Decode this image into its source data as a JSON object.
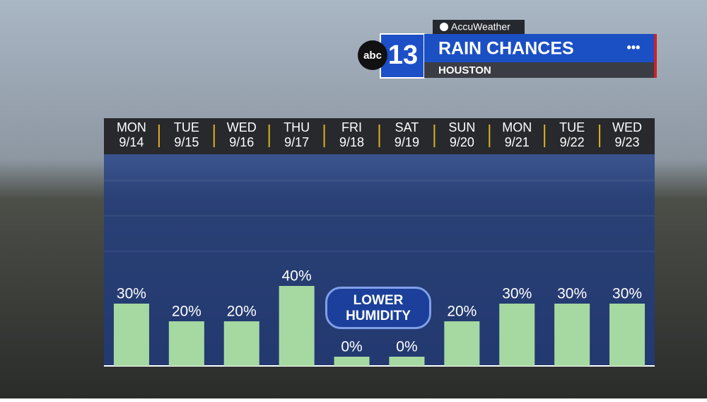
{
  "header": {
    "provider": "AccuWeather",
    "network": "abc",
    "channel": "13",
    "title": "RAIN CHANCES",
    "location": "HOUSTON"
  },
  "chart_data": {
    "type": "bar",
    "weekdays": [
      "MON",
      "TUE",
      "WED",
      "THU",
      "FRI",
      "SAT",
      "SUN",
      "MON",
      "TUE",
      "WED"
    ],
    "categories": [
      "9/14",
      "9/15",
      "9/16",
      "9/17",
      "9/18",
      "9/19",
      "9/20",
      "9/21",
      "9/22",
      "9/23"
    ],
    "values": [
      30,
      20,
      20,
      40,
      0,
      0,
      20,
      30,
      30,
      30
    ],
    "value_labels": [
      "30%",
      "20%",
      "20%",
      "40%",
      "0%",
      "0%",
      "20%",
      "30%",
      "30%",
      "30%"
    ],
    "color": "#a6d9a2",
    "ylim": [
      0,
      100
    ],
    "annotation": "LOWER HUMIDITY"
  }
}
